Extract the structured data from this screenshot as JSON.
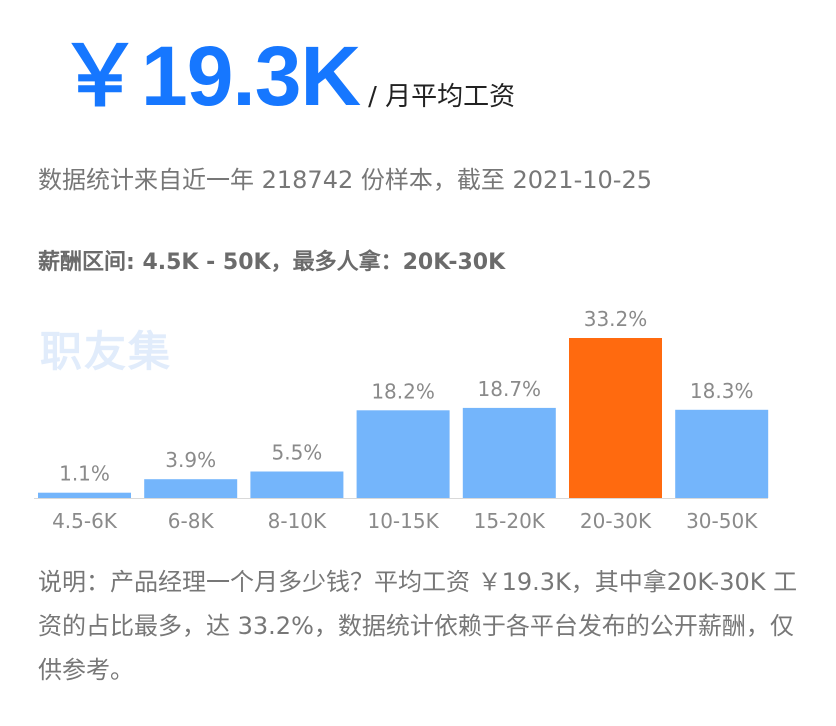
{
  "header": {
    "amount": "￥19.3K",
    "unit": "/ 月平均工资"
  },
  "sample_text": "数据统计来自近一年 218742 份样本，截至 2021-10-25",
  "range_text": "薪酬区间: 4.5K - 50K，最多人拿：20K-30K",
  "watermark": "职友集",
  "description": "说明：产品经理一个月多少钱？平均工资 ￥19.3K，其中拿20K-30K 工资的占比最多，达 33.2%，数据统计依赖于各平台发布的公开薪酬，仅供参考。",
  "colors": {
    "accent": "#1677ff",
    "bar_default": "#74b5fb",
    "bar_highlight": "#ff6a0f",
    "axis": "#d9d9d9"
  },
  "chart_data": {
    "type": "bar",
    "categories": [
      "4.5-6K",
      "6-8K",
      "8-10K",
      "10-15K",
      "15-20K",
      "20-30K",
      "30-50K"
    ],
    "values": [
      1.1,
      3.9,
      5.5,
      18.2,
      18.7,
      33.2,
      18.3
    ],
    "value_labels": [
      "1.1%",
      "3.9%",
      "5.5%",
      "18.2%",
      "18.7%",
      "33.2%",
      "18.3%"
    ],
    "highlight_category": "20-30K",
    "title": "",
    "xlabel": "",
    "ylabel": "",
    "ylim": [
      0,
      33.2
    ],
    "grid": false,
    "legend": "none"
  }
}
